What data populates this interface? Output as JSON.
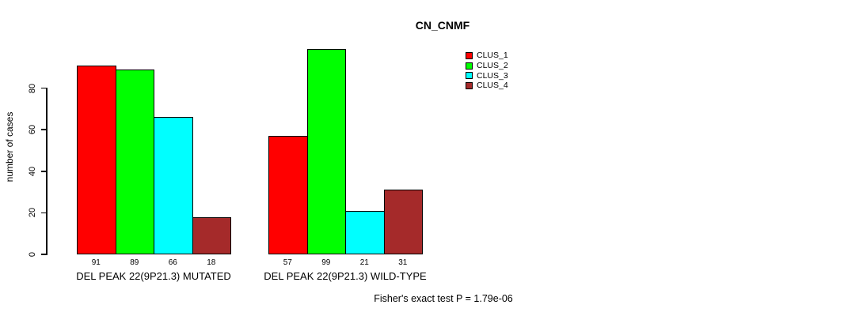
{
  "chart_data": {
    "type": "bar",
    "title": "CN_CNMF",
    "xlabel": "",
    "ylabel": "number of cases",
    "annotation": "Fisher's exact test P = 1.79e-06",
    "categories": [
      "DEL PEAK 22(9P21.3) MUTATED",
      "DEL PEAK 22(9P21.3) WILD-TYPE"
    ],
    "series": [
      {
        "name": "CLUS_1",
        "color": "#FF0000",
        "values": [
          91,
          57
        ]
      },
      {
        "name": "CLUS_2",
        "color": "#00FF00",
        "values": [
          89,
          99
        ]
      },
      {
        "name": "CLUS_3",
        "color": "#00FFFF",
        "values": [
          66,
          21
        ]
      },
      {
        "name": "CLUS_4",
        "color": "#A52A2A",
        "values": [
          18,
          31
        ]
      }
    ],
    "bar_value_labels": [
      [
        91,
        89,
        66,
        18
      ],
      [
        57,
        99,
        21,
        31
      ]
    ],
    "yticks": [
      0,
      20,
      40,
      60,
      80
    ],
    "ylim": [
      0,
      100
    ],
    "grid": false,
    "legend_position": "top-right",
    "axis_color": "#000000",
    "background_color": "#FFFFFF"
  }
}
